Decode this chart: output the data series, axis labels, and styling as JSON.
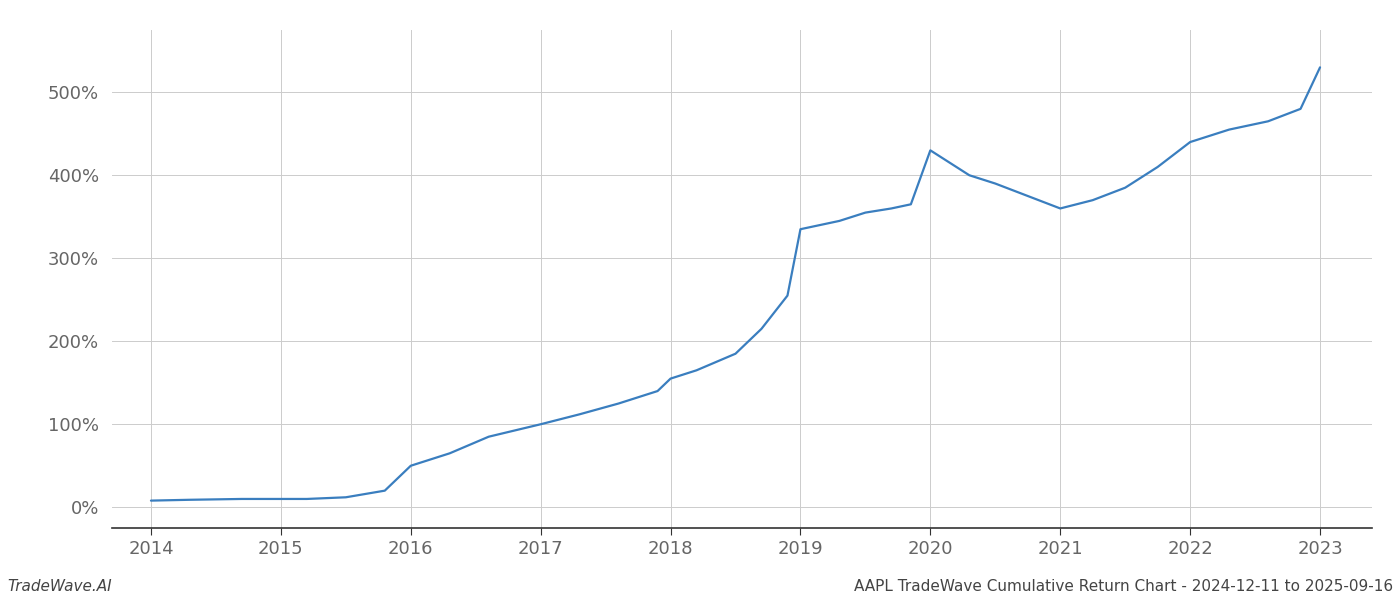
{
  "title": "",
  "footer_left": "TradeWave.AI",
  "footer_right": "AAPL TradeWave Cumulative Return Chart - 2024-12-11 to 2025-09-16",
  "line_color": "#3a7ebf",
  "background_color": "#ffffff",
  "grid_color": "#cccccc",
  "x_values": [
    2014.0,
    2014.3,
    2014.7,
    2015.0,
    2015.2,
    2015.5,
    2015.8,
    2016.0,
    2016.3,
    2016.6,
    2017.0,
    2017.3,
    2017.6,
    2017.9,
    2018.0,
    2018.2,
    2018.5,
    2018.7,
    2018.9,
    2019.0,
    2019.15,
    2019.3,
    2019.5,
    2019.7,
    2019.85,
    2020.0,
    2020.15,
    2020.3,
    2020.5,
    2020.75,
    2021.0,
    2021.25,
    2021.5,
    2021.75,
    2022.0,
    2022.3,
    2022.6,
    2022.85,
    2023.0
  ],
  "y_values": [
    8,
    9,
    10,
    10,
    10,
    12,
    20,
    50,
    65,
    85,
    100,
    112,
    125,
    140,
    155,
    165,
    185,
    215,
    255,
    335,
    340,
    345,
    355,
    360,
    365,
    430,
    415,
    400,
    390,
    375,
    360,
    370,
    385,
    410,
    440,
    455,
    465,
    480,
    530
  ],
  "x_ticks": [
    2014,
    2015,
    2016,
    2017,
    2018,
    2019,
    2020,
    2021,
    2022,
    2023
  ],
  "y_ticks": [
    0,
    100,
    200,
    300,
    400,
    500
  ],
  "xlim": [
    2013.7,
    2023.4
  ],
  "ylim": [
    -25,
    575
  ],
  "line_width": 1.6,
  "font_family": "DejaVu Sans",
  "tick_fontsize": 13,
  "footer_fontsize": 11,
  "tick_color": "#666666",
  "spine_color": "#333333"
}
